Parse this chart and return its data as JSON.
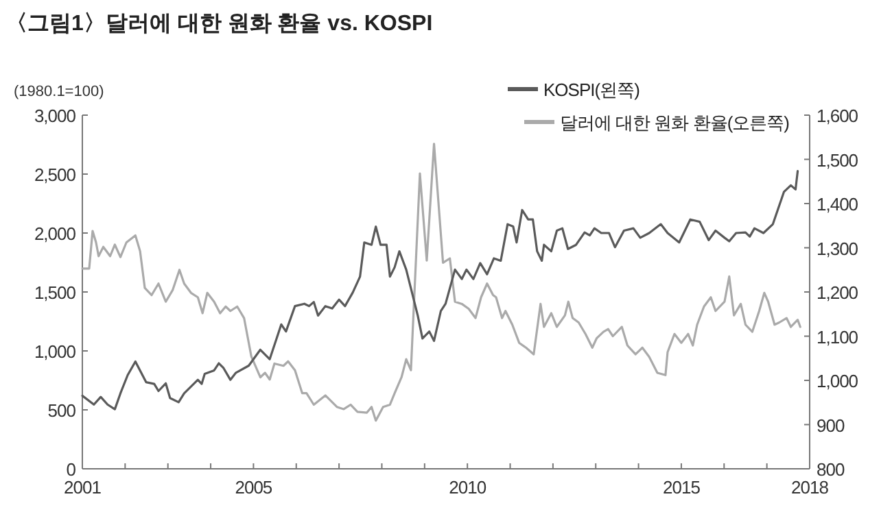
{
  "chart_data": {
    "type": "line",
    "title": "〈그림1〉달러에 대한 원화 환율 vs. KOSPI",
    "ylabel": "(1980.1=100)",
    "xlim": [
      2001,
      2018
    ],
    "xticks": [
      2001,
      {
        "value": 2002,
        "label": null
      },
      {
        "value": 2003,
        "label": null
      },
      {
        "value": 2004,
        "label": null
      },
      2005,
      {
        "value": 2006,
        "label": null
      },
      {
        "value": 2007,
        "label": null
      },
      {
        "value": 2008,
        "label": null
      },
      {
        "value": 2009,
        "label": null
      },
      2010,
      {
        "value": 2011,
        "label": null
      },
      {
        "value": 2012,
        "label": null
      },
      {
        "value": 2013,
        "label": null
      },
      {
        "value": 2014,
        "label": null
      },
      2015,
      {
        "value": 2016,
        "label": null
      },
      {
        "value": 2017,
        "label": null
      },
      2018
    ],
    "ylim": [
      0,
      3000
    ],
    "yticks": [
      0,
      500,
      {
        "value": 1000,
        "label": "1,000"
      },
      {
        "value": 1500,
        "label": "1,500"
      },
      {
        "value": 2000,
        "label": "2,000"
      },
      {
        "value": 2500,
        "label": "2,500"
      },
      {
        "value": 3000,
        "label": "3,000"
      }
    ],
    "y2lim": [
      800,
      1600
    ],
    "y2ticks": [
      800,
      900,
      {
        "value": 1000,
        "label": "1,000"
      },
      {
        "value": 1100,
        "label": "1,100"
      },
      {
        "value": 1200,
        "label": "1,200"
      },
      {
        "value": 1300,
        "label": "1,300"
      },
      {
        "value": 1400,
        "label": "1,400"
      },
      {
        "value": 1500,
        "label": "1,500"
      },
      {
        "value": 1600,
        "label": "1,600"
      }
    ],
    "legend": "top right",
    "grid": false,
    "series": [
      {
        "name": "KOSPI(왼쪽)",
        "color": "#5a5a5a",
        "x": [
          2001.0,
          2001.27,
          2001.43,
          2001.59,
          2001.76,
          2001.89,
          2002.06,
          2002.24,
          2002.49,
          2002.68,
          2002.78,
          2002.95,
          2003.05,
          2003.25,
          2003.38,
          2003.7,
          2003.79,
          2003.86,
          2004.08,
          2004.19,
          2004.3,
          2004.46,
          2004.59,
          2004.89,
          2005.16,
          2005.38,
          2005.54,
          2005.65,
          2005.76,
          2005.97,
          2006.19,
          2006.3,
          2006.41,
          2006.51,
          2006.68,
          2006.84,
          2007.0,
          2007.14,
          2007.32,
          2007.49,
          2007.59,
          2007.76,
          2007.86,
          2007.97,
          2008.11,
          2008.19,
          2008.3,
          2008.41,
          2008.57,
          2008.84,
          2008.95,
          2009.11,
          2009.22,
          2009.38,
          2009.49,
          2009.71,
          2009.87,
          2009.98,
          2010.14,
          2010.3,
          2010.46,
          2010.62,
          2010.78,
          2010.94,
          2011.07,
          2011.15,
          2011.28,
          2011.42,
          2011.53,
          2011.63,
          2011.74,
          2011.79,
          2011.96,
          2012.09,
          2012.22,
          2012.35,
          2012.54,
          2012.74,
          2012.86,
          2012.97,
          2013.13,
          2013.31,
          2013.45,
          2013.66,
          2013.88,
          2014.04,
          2014.25,
          2014.52,
          2014.68,
          2014.95,
          2015.21,
          2015.43,
          2015.64,
          2015.8,
          2016.01,
          2016.12,
          2016.28,
          2016.5,
          2016.6,
          2016.71,
          2016.92,
          2017.14,
          2017.4,
          2017.56,
          2017.67,
          2017.72
        ],
        "values": [
          620,
          545,
          610,
          545,
          505,
          640,
          795,
          910,
          735,
          720,
          660,
          725,
          600,
          565,
          640,
          755,
          720,
          805,
          835,
          895,
          855,
          755,
          815,
          875,
          1010,
          930,
          1105,
          1225,
          1165,
          1380,
          1400,
          1380,
          1415,
          1300,
          1380,
          1360,
          1435,
          1380,
          1495,
          1630,
          1920,
          1900,
          2055,
          1900,
          1900,
          1630,
          1710,
          1845,
          1690,
          1300,
          1105,
          1165,
          1085,
          1340,
          1400,
          1690,
          1610,
          1690,
          1610,
          1745,
          1650,
          1785,
          1765,
          2075,
          2055,
          1920,
          2195,
          2115,
          2115,
          1845,
          1765,
          1900,
          1845,
          2020,
          2040,
          1865,
          1900,
          2005,
          1980,
          2040,
          2000,
          2000,
          1880,
          2020,
          2040,
          1960,
          2000,
          2075,
          2000,
          1920,
          2115,
          2095,
          1940,
          2020,
          1960,
          1930,
          2000,
          2005,
          1970,
          2040,
          2000,
          2075,
          2350,
          2405,
          2370,
          2525
        ]
      },
      {
        "name": "달러에 대한 원화 환율(오른쪽)",
        "color": "#aaaaaa",
        "axis": "y2",
        "x": [
          2001.0,
          2001.16,
          2001.24,
          2001.32,
          2001.38,
          2001.49,
          2001.65,
          2001.76,
          2001.89,
          2002.03,
          2002.24,
          2002.35,
          2002.46,
          2002.62,
          2002.78,
          2002.95,
          2003.11,
          2003.27,
          2003.38,
          2003.54,
          2003.7,
          2003.81,
          2003.92,
          2004.08,
          2004.22,
          2004.35,
          2004.46,
          2004.62,
          2004.78,
          2004.95,
          2005.16,
          2005.27,
          2005.38,
          2005.49,
          2005.7,
          2005.81,
          2005.97,
          2006.14,
          2006.24,
          2006.41,
          2006.68,
          2006.95,
          2007.11,
          2007.27,
          2007.43,
          2007.65,
          2007.76,
          2007.86,
          2008.03,
          2008.19,
          2008.3,
          2008.46,
          2008.57,
          2008.68,
          2008.89,
          2009.05,
          2009.22,
          2009.43,
          2009.59,
          2009.71,
          2009.87,
          2010.03,
          2010.19,
          2010.32,
          2010.46,
          2010.6,
          2010.67,
          2010.81,
          2010.89,
          2011.05,
          2011.21,
          2011.37,
          2011.55,
          2011.71,
          2011.79,
          2011.96,
          2012.09,
          2012.28,
          2012.36,
          2012.46,
          2012.6,
          2012.76,
          2012.92,
          2013.02,
          2013.18,
          2013.29,
          2013.4,
          2013.61,
          2013.74,
          2013.93,
          2014.09,
          2014.25,
          2014.44,
          2014.63,
          2014.68,
          2014.84,
          2015.0,
          2015.16,
          2015.27,
          2015.37,
          2015.53,
          2015.69,
          2015.8,
          2016.01,
          2016.12,
          2016.23,
          2016.39,
          2016.5,
          2016.66,
          2016.82,
          2016.94,
          2017.03,
          2017.18,
          2017.29,
          2017.46,
          2017.56,
          2017.72,
          2017.78
        ],
        "values": [
          1253,
          1253,
          1338,
          1312,
          1281,
          1302,
          1281,
          1307,
          1279,
          1312,
          1328,
          1292,
          1209,
          1193,
          1219,
          1178,
          1204,
          1250,
          1219,
          1198,
          1188,
          1152,
          1198,
          1178,
          1152,
          1167,
          1157,
          1167,
          1141,
          1054,
          1007,
          1017,
          1002,
          1038,
          1033,
          1043,
          1023,
          971,
          971,
          945,
          966,
          940,
          935,
          945,
          929,
          927,
          940,
          909,
          940,
          945,
          971,
          1007,
          1048,
          1023,
          1468,
          1271,
          1535,
          1266,
          1276,
          1178,
          1173,
          1162,
          1141,
          1188,
          1219,
          1193,
          1188,
          1141,
          1157,
          1126,
          1085,
          1074,
          1059,
          1173,
          1121,
          1152,
          1121,
          1147,
          1178,
          1141,
          1131,
          1105,
          1074,
          1095,
          1110,
          1116,
          1100,
          1121,
          1079,
          1059,
          1074,
          1053,
          1017,
          1012,
          1064,
          1105,
          1085,
          1105,
          1079,
          1126,
          1167,
          1188,
          1157,
          1178,
          1235,
          1147,
          1173,
          1126,
          1110,
          1157,
          1198,
          1178,
          1126,
          1131,
          1141,
          1121,
          1137,
          1121
        ]
      }
    ]
  }
}
